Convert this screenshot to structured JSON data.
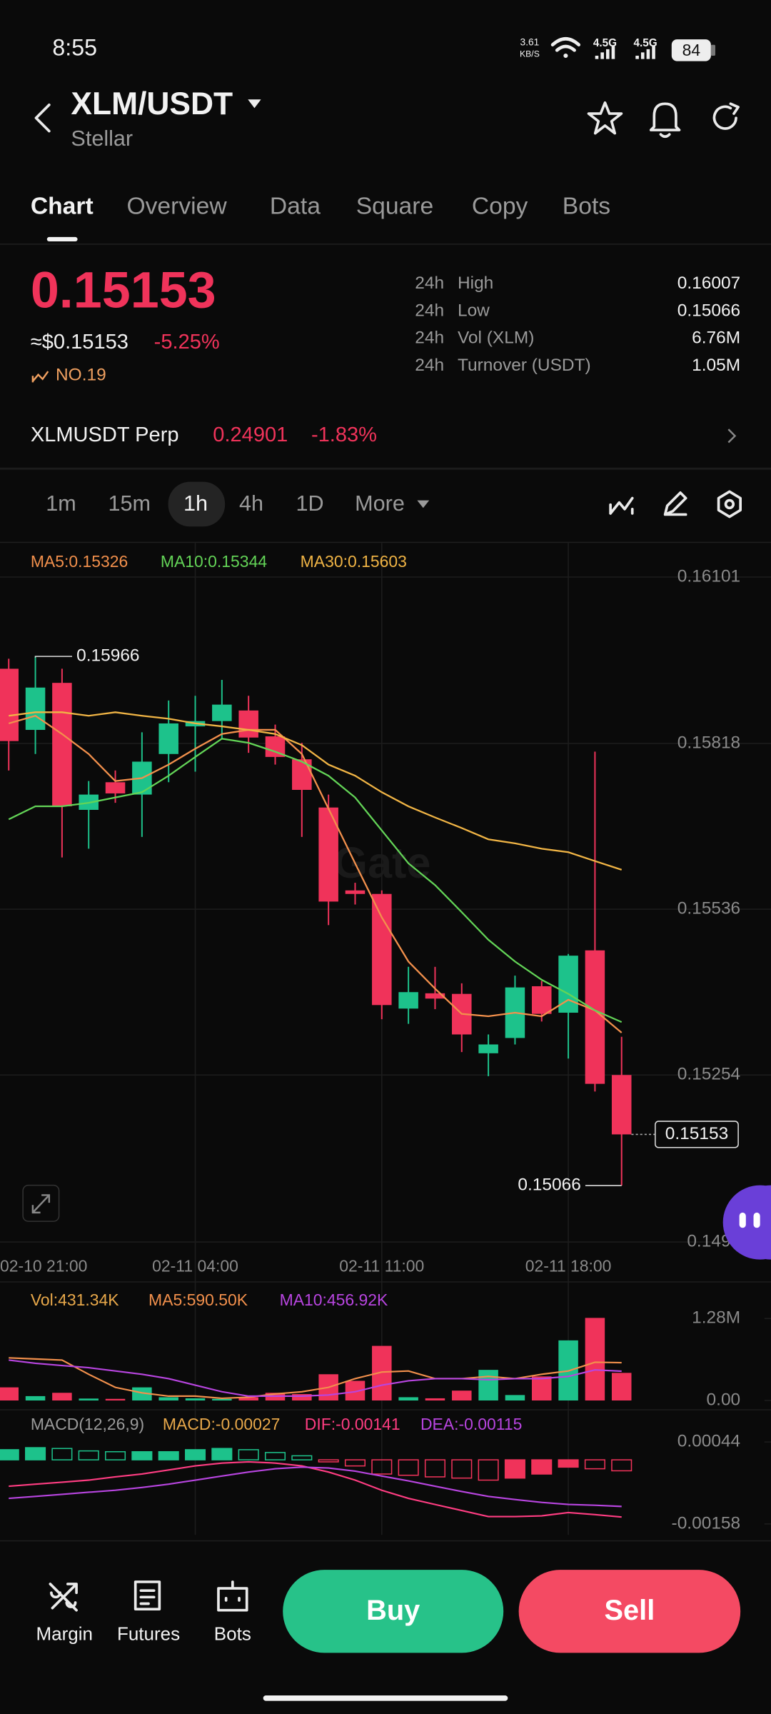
{
  "status_bar": {
    "time": "8:55",
    "speed": "3.61",
    "speed_unit": "KB/S",
    "network_1": "4.5G",
    "network_2": "4.5G",
    "battery": "84"
  },
  "header": {
    "pair": "XLM/USDT",
    "name": "Stellar"
  },
  "tabs": [
    "Chart",
    "Overview",
    "Data",
    "Square",
    "Copy",
    "Bots"
  ],
  "ticker": {
    "price": "0.15153",
    "usd_price": "≈$0.15153",
    "change": "-5.25%",
    "rank": "NO.19",
    "stats": [
      [
        "24h",
        "High",
        "0.16007"
      ],
      [
        "24h",
        "Low",
        "0.15066"
      ],
      [
        "24h",
        "Vol (XLM)",
        "6.76M"
      ],
      [
        "24h",
        "Turnover (USDT)",
        "1.05M"
      ]
    ]
  },
  "perp": {
    "name": "XLMUSDT Perp",
    "price": "0.24901",
    "change": "-1.83%"
  },
  "intervals": [
    "1m",
    "15m",
    "1h",
    "4h",
    "1D",
    "More"
  ],
  "watermark": "Gate",
  "chart_data": [
    {
      "type": "candlestick",
      "categories": [
        "02-10 21:00",
        null,
        null,
        null,
        null,
        null,
        null,
        "02-11 04:00",
        null,
        null,
        null,
        null,
        null,
        null,
        "02-11 11:00",
        null,
        null,
        null,
        null,
        null,
        null,
        "02-11 18:00",
        null,
        null
      ],
      "open": [
        0.15945,
        0.15841,
        0.15921,
        0.15705,
        0.15752,
        0.15731,
        0.158,
        0.15847,
        0.15856,
        0.15874,
        0.1583,
        0.15791,
        0.15709,
        0.15568,
        0.15562,
        0.15367,
        0.15393,
        0.15392,
        0.15291,
        0.15317,
        0.15405,
        0.1536,
        0.15466,
        0.15254
      ],
      "high": [
        0.15962,
        0.15966,
        0.15945,
        0.15754,
        0.15772,
        0.15837,
        0.15891,
        0.15899,
        0.15926,
        0.15899,
        0.1585,
        0.15819,
        0.15731,
        0.15581,
        0.15568,
        0.15438,
        0.15438,
        0.1541,
        0.15323,
        0.15423,
        0.15414,
        0.1546,
        0.15804,
        0.15319
      ],
      "low": [
        0.15772,
        0.158,
        0.15624,
        0.15639,
        0.15717,
        0.15659,
        0.15752,
        0.1577,
        0.15826,
        0.15802,
        0.15782,
        0.15659,
        0.15509,
        0.15544,
        0.15349,
        0.15341,
        0.15366,
        0.15293,
        0.15252,
        0.15306,
        0.15345,
        0.15282,
        0.15226,
        0.15066
      ],
      "close": [
        0.15822,
        0.15913,
        0.15711,
        0.15731,
        0.15733,
        0.15787,
        0.15852,
        0.15856,
        0.15884,
        0.15828,
        0.15795,
        0.15739,
        0.15549,
        0.15562,
        0.15373,
        0.15395,
        0.15384,
        0.15323,
        0.15306,
        0.15403,
        0.15358,
        0.15457,
        0.15239,
        0.15153
      ],
      "up_color": "#1dc28b",
      "down_color": "#f0335a",
      "series": [
        {
          "name": "MA5:0.15326",
          "color": "#f2904c",
          "values": [
            0.15852,
            0.15865,
            0.15834,
            0.158,
            0.15754,
            0.15759,
            0.15782,
            0.15809,
            0.15834,
            0.15841,
            0.15841,
            0.158,
            0.15707,
            0.15614,
            0.15522,
            0.15447,
            0.15401,
            0.15358,
            0.15354,
            0.1536,
            0.15354,
            0.15382,
            0.15364,
            0.15326
          ]
        },
        {
          "name": "MA10:0.15344",
          "color": "#63d457",
          "values": [
            0.15689,
            0.15711,
            0.15711,
            0.15717,
            0.15726,
            0.15735,
            0.15763,
            0.15795,
            0.15826,
            0.15819,
            0.15804,
            0.15787,
            0.15763,
            0.15726,
            0.1567,
            0.15614,
            0.15577,
            0.15531,
            0.15484,
            0.15447,
            0.15416,
            0.15392,
            0.15364,
            0.15344
          ]
        },
        {
          "name": "MA30:0.15603",
          "color": "#f0b445",
          "values": [
            0.15865,
            0.15871,
            0.15871,
            0.15865,
            0.15871,
            0.15865,
            0.1586,
            0.15852,
            0.15847,
            0.15841,
            0.15834,
            0.15815,
            0.15782,
            0.15763,
            0.15735,
            0.15711,
            0.15692,
            0.15674,
            0.15655,
            0.15648,
            0.15639,
            0.15633,
            0.15618,
            0.15603
          ]
        }
      ],
      "ylim": [
        0.14955,
        0.16159
      ],
      "yticks": [
        0.16101,
        0.15818,
        0.15536,
        0.15254,
        0.1497
      ],
      "grid": true
    },
    {
      "type": "bar",
      "series": [
        {
          "name": "Vol:431.34K",
          "color": "#e8a84a",
          "type": "bar",
          "values": [
            205000,
            68000,
            120000,
            30000,
            25000,
            205000,
            51000,
            34000,
            25000,
            51000,
            120000,
            100000,
            410000,
            307000,
            853000,
            51000,
            34000,
            154000,
            478000,
            85000,
            376000,
            939000,
            1290000,
            431340
          ]
        },
        {
          "name": "MA5:590.50K",
          "color": "#f2904c",
          "values": [
            666000,
            649000,
            632000,
            410000,
            205000,
            120000,
            68000,
            68000,
            34000,
            51000,
            102000,
            137000,
            205000,
            341000,
            444000,
            461000,
            341000,
            341000,
            376000,
            341000,
            410000,
            461000,
            597000,
            590500
          ]
        },
        {
          "name": "MA10:456.92K",
          "color": "#b845e0",
          "values": [
            632000,
            580000,
            546000,
            512000,
            461000,
            410000,
            341000,
            239000,
            137000,
            68000,
            68000,
            68000,
            85000,
            137000,
            239000,
            307000,
            341000,
            341000,
            324000,
            341000,
            341000,
            376000,
            478000,
            456920
          ]
        }
      ],
      "ylim": [
        0,
        1280000
      ],
      "yticks": [
        {
          "value": 1280000,
          "label": "1.28M"
        },
        {
          "value": 0,
          "label": "0.00"
        }
      ]
    },
    {
      "type": "macd",
      "title": "MACD(12,26,9)",
      "series": [
        {
          "name": "MACD:-0.00027",
          "color": "#e8a84a",
          "type": "bar",
          "values": [
            0.00025,
            0.0003,
            0.00028,
            0.00022,
            0.0002,
            0.0002,
            0.0002,
            0.00025,
            0.00028,
            0.00025,
            0.00018,
            0.0001,
            -5e-05,
            -0.00015,
            -0.00035,
            -0.00038,
            -0.00042,
            -0.00045,
            -0.0005,
            -0.00045,
            -0.00035,
            -0.00018,
            -0.00022,
            -0.00027
          ]
        },
        {
          "name": "DIF:-0.00141",
          "color": "#ff3d82",
          "values": [
            -0.00065,
            -0.0006,
            -0.00055,
            -0.0005,
            -0.00042,
            -0.00035,
            -0.00025,
            -0.00015,
            -8e-05,
            -5e-05,
            -8e-05,
            -0.00015,
            -0.0003,
            -0.0005,
            -0.00075,
            -0.00095,
            -0.0011,
            -0.00125,
            -0.0014,
            -0.0014,
            -0.00138,
            -0.0013,
            -0.00135,
            -0.00141
          ]
        },
        {
          "name": "DEA:-0.00115",
          "color": "#b845e0",
          "values": [
            -0.00095,
            -0.0009,
            -0.00085,
            -0.0008,
            -0.00075,
            -0.00068,
            -0.0006,
            -0.0005,
            -0.0004,
            -0.0003,
            -0.00022,
            -0.00018,
            -0.0002,
            -0.00028,
            -0.0004,
            -0.00052,
            -0.00065,
            -0.00078,
            -0.0009,
            -0.00098,
            -0.00105,
            -0.0011,
            -0.00112,
            -0.00115
          ]
        }
      ],
      "ylim": [
        -0.00158,
        0.00044
      ],
      "yticks": [
        0.00044,
        -0.00158
      ]
    }
  ],
  "bottom_bar": {
    "actions": [
      "Margin",
      "Futures",
      "Bots"
    ],
    "buy": "Buy",
    "sell": "Sell"
  }
}
